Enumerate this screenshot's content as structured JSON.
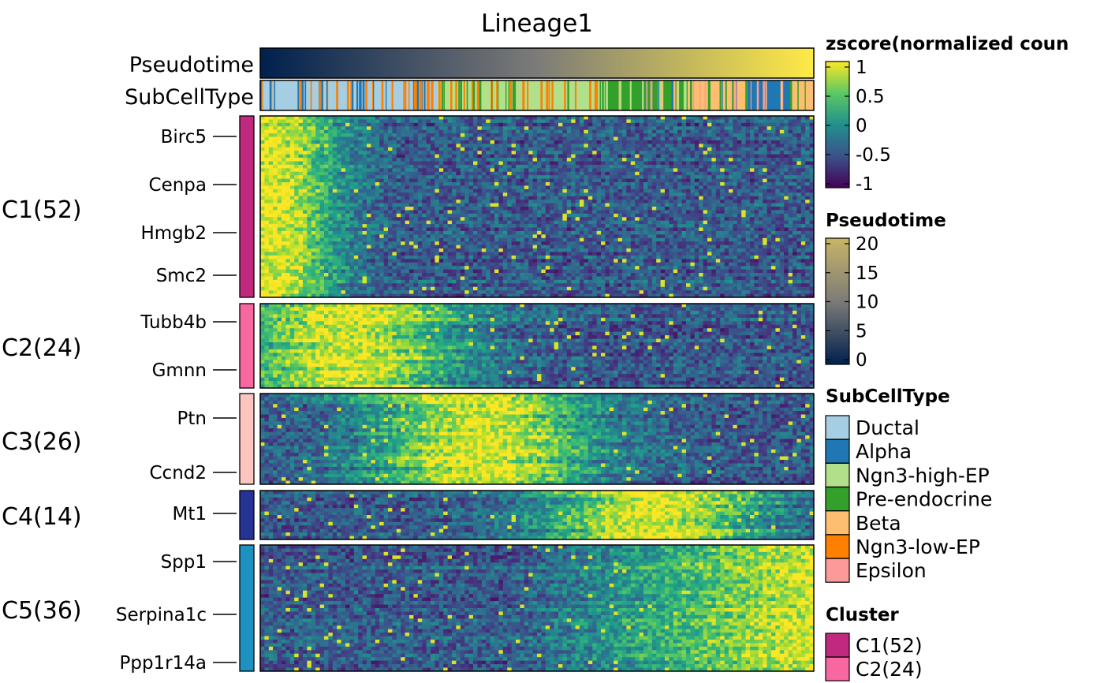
{
  "chart_data": {
    "type": "heatmap",
    "title": "Lineage1",
    "top_annotations": [
      {
        "name": "Pseudotime",
        "kind": "continuous",
        "range": [
          0,
          21
        ]
      },
      {
        "name": "SubCellType",
        "kind": "categorical",
        "sequence": [
          "Ductal",
          "Ngn3-low-EP",
          "Ngn3-high-EP",
          "Pre-endocrine",
          "Beta",
          "Alpha",
          "Beta"
        ],
        "proportions": [
          0.32,
          0.0,
          0.31,
          0.15,
          0.1,
          0.08,
          0.04
        ]
      }
    ],
    "clusters": [
      {
        "label": "C1(52)",
        "n": 52,
        "color": "#C0297E",
        "peak": 0.02,
        "genes": [
          "Birc5",
          "Cenpa",
          "Hmgb2",
          "Smc2"
        ]
      },
      {
        "label": "C2(24)",
        "n": 24,
        "color": "#F768A1",
        "peak": 0.16,
        "genes": [
          "Tubb4b",
          "Gmnn"
        ]
      },
      {
        "label": "C3(26)",
        "n": 26,
        "color": "#FCC5C0",
        "peak": 0.4,
        "genes": [
          "Ptn",
          "Ccnd2"
        ]
      },
      {
        "label": "C4(14)",
        "n": 14,
        "color": "#253494",
        "peak": 0.72,
        "genes": [
          "Mt1"
        ]
      },
      {
        "label": "C5(36)",
        "n": 36,
        "color": "#1D91C0",
        "peak": 0.97,
        "genes": [
          "Spp1",
          "Serpina1c",
          "Ppp1r14a"
        ]
      }
    ],
    "legends": [
      {
        "title": "zscore(normalized coun",
        "kind": "continuous",
        "ticks": [
          "1",
          "0.5",
          "0",
          "-0.5",
          "-1"
        ]
      },
      {
        "title": "Pseudotime",
        "kind": "continuous",
        "ticks": [
          "20",
          "15",
          "10",
          "5",
          "0"
        ]
      },
      {
        "title": "SubCellType",
        "kind": "categorical",
        "items": [
          {
            "label": "Ductal",
            "color": "#A6CEE3"
          },
          {
            "label": "Alpha",
            "color": "#1F78B4"
          },
          {
            "label": "Ngn3-high-EP",
            "color": "#B2DF8A"
          },
          {
            "label": "Pre-endocrine",
            "color": "#33A02C"
          },
          {
            "label": "Beta",
            "color": "#FDBF6F"
          },
          {
            "label": "Ngn3-low-EP",
            "color": "#FF7F00"
          },
          {
            "label": "Epsilon",
            "color": "#FB9A99"
          }
        ]
      },
      {
        "title": "Cluster",
        "kind": "categorical",
        "items": [
          {
            "label": "C1(52)",
            "color": "#C0297E"
          },
          {
            "label": "C2(24)",
            "color": "#F768A1"
          }
        ]
      }
    ]
  }
}
